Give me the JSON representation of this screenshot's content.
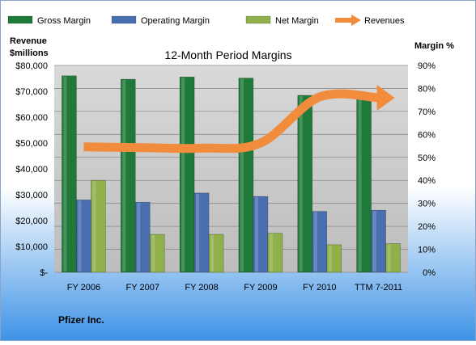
{
  "colors": {
    "gross_margin": "#1f7a3a",
    "operating_margin": "#4a6fb0",
    "net_margin": "#8fb04a",
    "revenues": "#f08c3c",
    "plot_bg": "#c9c9c9",
    "bg_top": "#ffffff",
    "bg_bottom": "#3e93e6"
  },
  "footer": {
    "company": "Pfizer Inc."
  },
  "chart_data": {
    "type": "bar",
    "title": "12-Month Period Margins",
    "categories": [
      "FY 2006",
      "FY 2007",
      "FY 2008",
      "FY 2009",
      "FY 2010",
      "TTM 7-2011"
    ],
    "y_left_label_line1": "Revenue",
    "y_left_label_line2": "$millions",
    "y_right_label": "Margin %",
    "y_left_ticks": [
      "$-",
      "$10,000",
      "$20,000",
      "$30,000",
      "$40,000",
      "$50,000",
      "$60,000",
      "$70,000",
      "$80,000"
    ],
    "y_right_ticks": [
      "0%",
      "10%",
      "20%",
      "30%",
      "40%",
      "50%",
      "60%",
      "70%",
      "80%",
      "90%"
    ],
    "y_left_lim": [
      0,
      80000
    ],
    "y_right_lim": [
      0,
      90
    ],
    "grid": true,
    "legend_position": "top",
    "series": [
      {
        "name": "Gross Margin",
        "axis": "right",
        "kind": "bar",
        "values": [
          85.5,
          84,
          85,
          84.5,
          77,
          77.5
        ]
      },
      {
        "name": "Operating Margin",
        "axis": "right",
        "kind": "bar",
        "values": [
          31.5,
          30.5,
          34.5,
          33,
          26.5,
          27
        ]
      },
      {
        "name": "Net Margin",
        "axis": "right",
        "kind": "bar",
        "values": [
          40,
          16.5,
          16.5,
          17,
          12,
          12.5
        ]
      },
      {
        "name": "Revenues",
        "axis": "left",
        "kind": "line",
        "values": [
          48500,
          48200,
          48000,
          50000,
          67800,
          67500
        ]
      }
    ]
  }
}
